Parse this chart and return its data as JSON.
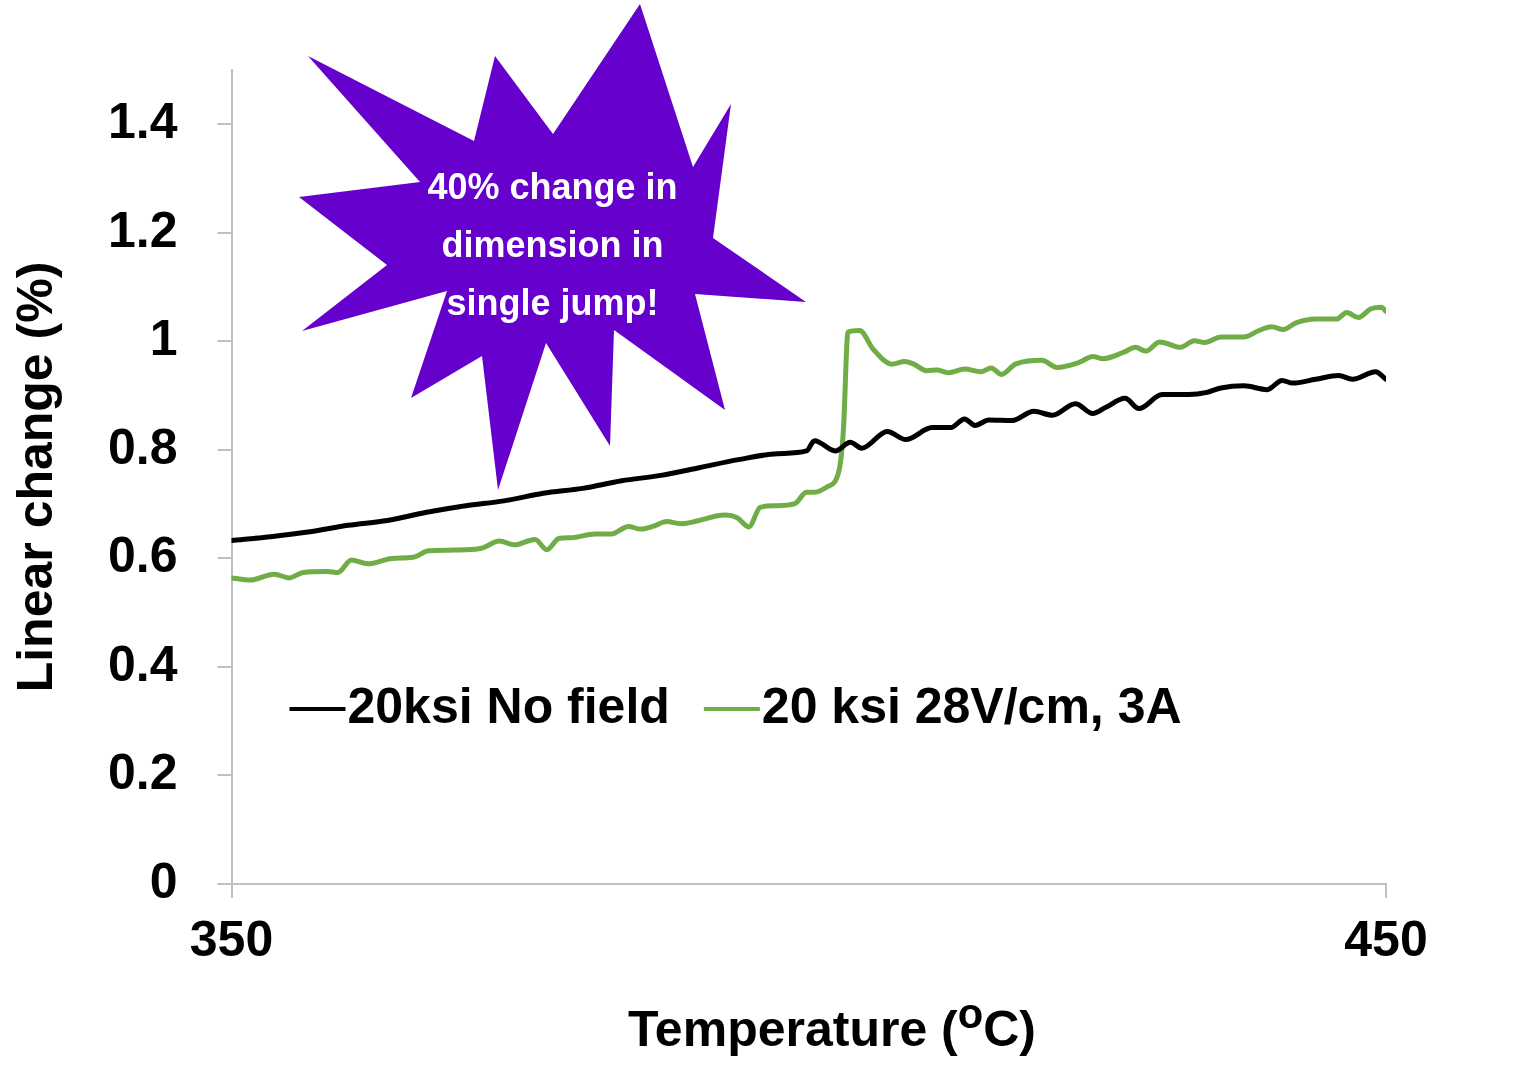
{
  "chart_data": {
    "type": "line",
    "xlabel": "Temperature ($^{o}$C)",
    "ylabel": "Linear change (%)",
    "xlim": [
      350,
      450
    ],
    "xticks": [
      350,
      450
    ],
    "ylim": [
      0,
      1.5
    ],
    "yticks": [
      0,
      0.2,
      0.4,
      0.6,
      0.8,
      1,
      1.2,
      1.4
    ],
    "legend": "bottom",
    "marker": "none",
    "line_style": "solid",
    "annotations": [
      "40% change in dimension in single jump!"
    ],
    "series": [
      {
        "name": "20ksi No field",
        "color": "#000000",
        "x": [
          350.0,
          353.4,
          356.8,
          360.1,
          363.5,
          366.9,
          370.3,
          373.6,
          377.0,
          380.4,
          383.8,
          387.2,
          390.5,
          393.9,
          397.3,
          399.8,
          400.5,
          402.3,
          403.6,
          404.6,
          406.8,
          408.4,
          410.7,
          412.3,
          413.5,
          414.4,
          415.6,
          417.6,
          419.5,
          421.1,
          423.1,
          424.6,
          425.7,
          427.4,
          428.6,
          430.6,
          432.9,
          434.5,
          435.7,
          437.7,
          439.7,
          441.0,
          441.9,
          443.9,
          445.9,
          447.1,
          449.1,
          450.0
        ],
        "values": [
          0.633,
          0.64,
          0.649,
          0.661,
          0.67,
          0.685,
          0.697,
          0.706,
          0.72,
          0.729,
          0.743,
          0.753,
          0.767,
          0.782,
          0.793,
          0.798,
          0.817,
          0.798,
          0.814,
          0.803,
          0.834,
          0.819,
          0.841,
          0.841,
          0.857,
          0.845,
          0.855,
          0.854,
          0.871,
          0.864,
          0.885,
          0.867,
          0.878,
          0.895,
          0.876,
          0.902,
          0.902,
          0.906,
          0.914,
          0.918,
          0.911,
          0.928,
          0.923,
          0.93,
          0.937,
          0.93,
          0.944,
          0.93
        ]
      },
      {
        "name": "20 ksi 28V/cm, 3A",
        "color": "#70ad47",
        "x": [
          350.0,
          351.6,
          353.7,
          355.0,
          356.2,
          358.3,
          359.2,
          360.4,
          361.8,
          363.9,
          365.7,
          367.1,
          370.3,
          371.7,
          373.2,
          374.5,
          376.3,
          377.3,
          378.4,
          379.4,
          381.5,
          382.9,
          384.4,
          385.4,
          386.5,
          387.7,
          388.9,
          392.8,
          393.8,
          394.8,
          395.8,
          397.0,
          398.8,
          399.8,
          400.5,
          401.6,
          402.6,
          403.0,
          403.4,
          404.4,
          405.6,
          407.2,
          408.3,
          409.1,
          410.2,
          411.1,
          412.1,
          413.5,
          414.9,
          415.8,
          416.7,
          417.9,
          420.2,
          421.5,
          423.4,
          424.6,
          425.5,
          427.3,
          428.3,
          429.2,
          430.4,
          432.2,
          433.4,
          434.3,
          435.7,
          437.7,
          439.0,
          440.1,
          441.1,
          442.2,
          443.9,
          445.7,
          446.6,
          447.6,
          448.7,
          449.6,
          450.0
        ],
        "values": [
          0.564,
          0.56,
          0.571,
          0.564,
          0.574,
          0.576,
          0.574,
          0.597,
          0.59,
          0.6,
          0.602,
          0.614,
          0.616,
          0.619,
          0.632,
          0.625,
          0.635,
          0.616,
          0.637,
          0.638,
          0.645,
          0.645,
          0.659,
          0.654,
          0.659,
          0.668,
          0.664,
          0.68,
          0.675,
          0.658,
          0.694,
          0.697,
          0.701,
          0.722,
          0.722,
          0.732,
          0.76,
          0.836,
          1.017,
          1.02,
          0.985,
          0.958,
          0.963,
          0.958,
          0.946,
          0.947,
          0.942,
          0.949,
          0.944,
          0.951,
          0.939,
          0.958,
          0.965,
          0.952,
          0.961,
          0.972,
          0.968,
          0.98,
          0.989,
          0.982,
          0.999,
          0.989,
          1.001,
          0.998,
          1.008,
          1.008,
          1.02,
          1.027,
          1.022,
          1.034,
          1.041,
          1.041,
          1.053,
          1.044,
          1.06,
          1.063,
          1.055
        ]
      }
    ]
  }
}
